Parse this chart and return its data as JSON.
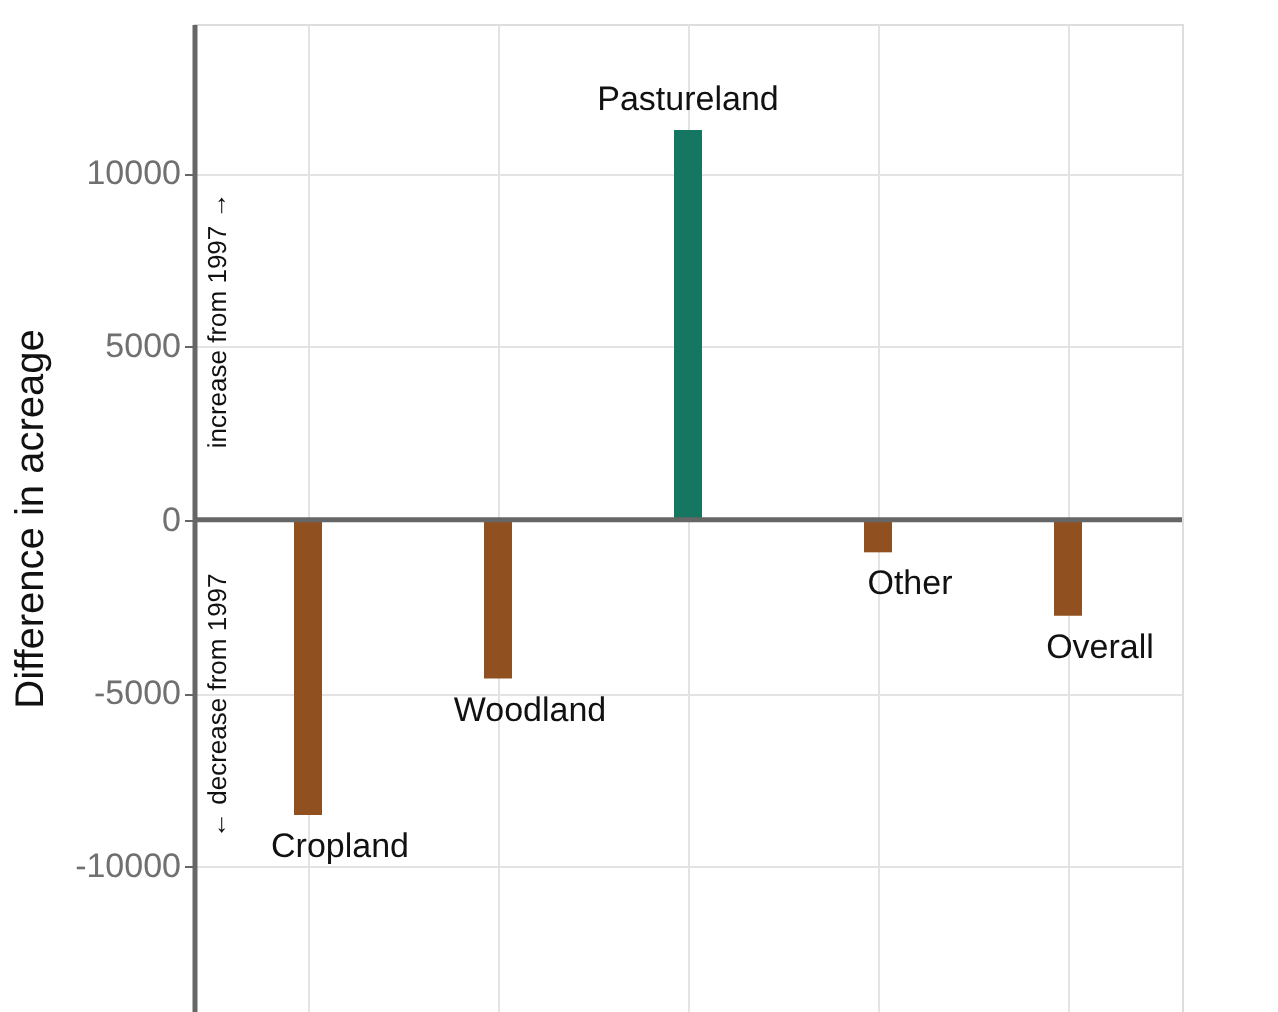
{
  "chart_data": {
    "type": "bar",
    "categories": [
      "Cropland",
      "Woodland",
      "Pastureland",
      "Other",
      "Overall"
    ],
    "values": [
      -8520,
      -4580,
      11240,
      -940,
      -2770
    ],
    "colors": [
      "#91501f",
      "#91501f",
      "#157762",
      "#91501f",
      "#91501f"
    ],
    "ylabel": "Difference in acreage",
    "ylim": [
      -14200,
      14300
    ],
    "yticks": [
      -10000,
      -5000,
      0,
      5000,
      10000
    ],
    "annotations": [
      "increase from 1997 →",
      "← decrease from 1997"
    ],
    "grid": true,
    "tick_labels": "y"
  }
}
